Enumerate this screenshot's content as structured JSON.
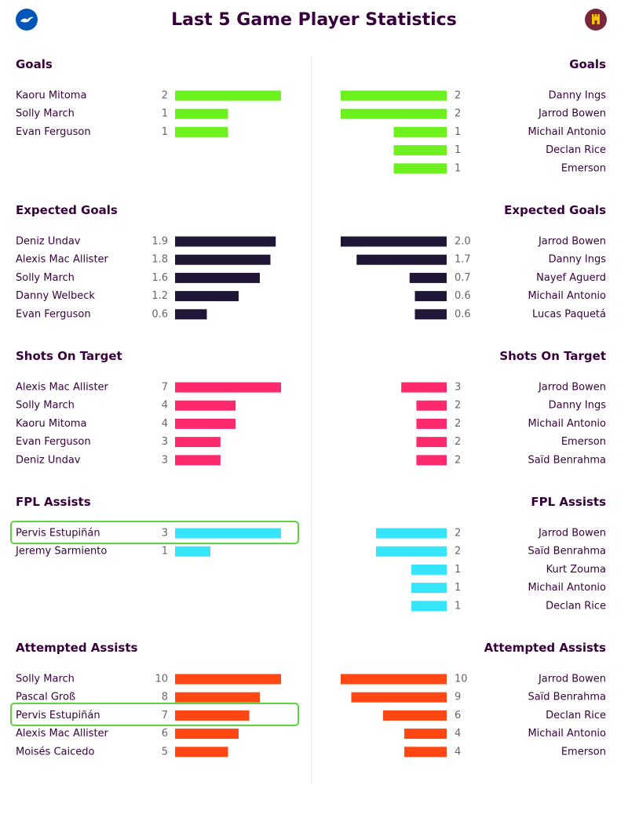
{
  "title": "Last 5 Game Player Statistics",
  "badges": {
    "left": "brighton-crest-icon",
    "right": "west-ham-crest-icon"
  },
  "colors": {
    "Goals": "#6cf01e",
    "Expected Goals": "#221637",
    "Shots On Target": "#ff2a6d",
    "FPL Assists": "#37e5fb",
    "Attempted Assists": "#ff4613",
    "highlight": "#5fd23f",
    "text": "#37003c",
    "value_text": "#666666"
  },
  "chart_data": [
    {
      "type": "bar",
      "section": "Goals",
      "title": "Goals",
      "xlim": [
        0,
        2
      ],
      "left": [
        {
          "player": "Kaoru Mitoma",
          "value": 2,
          "label": "2"
        },
        {
          "player": "Solly March",
          "value": 1,
          "label": "1"
        },
        {
          "player": "Evan Ferguson",
          "value": 1,
          "label": "1"
        }
      ],
      "right": [
        {
          "player": "Danny Ings",
          "value": 2,
          "label": "2"
        },
        {
          "player": "Jarrod Bowen",
          "value": 2,
          "label": "2"
        },
        {
          "player": "Michail Antonio",
          "value": 1,
          "label": "1"
        },
        {
          "player": "Declan Rice",
          "value": 1,
          "label": "1"
        },
        {
          "player": "Emerson",
          "value": 1,
          "label": "1"
        }
      ]
    },
    {
      "type": "bar",
      "section": "Expected Goals",
      "title": "Expected Goals",
      "xlim": [
        0,
        2.0
      ],
      "left": [
        {
          "player": "Deniz Undav",
          "value": 1.9,
          "label": "1.9"
        },
        {
          "player": "Alexis Mac Allister",
          "value": 1.8,
          "label": "1.8"
        },
        {
          "player": "Solly March",
          "value": 1.6,
          "label": "1.6"
        },
        {
          "player": "Danny Welbeck",
          "value": 1.2,
          "label": "1.2"
        },
        {
          "player": "Evan Ferguson",
          "value": 0.6,
          "label": "0.6"
        }
      ],
      "right": [
        {
          "player": "Jarrod Bowen",
          "value": 2.0,
          "label": "2.0"
        },
        {
          "player": "Danny Ings",
          "value": 1.7,
          "label": "1.7"
        },
        {
          "player": "Nayef Aguerd",
          "value": 0.7,
          "label": "0.7"
        },
        {
          "player": "Michail Antonio",
          "value": 0.6,
          "label": "0.6"
        },
        {
          "player": "Lucas Paquetá",
          "value": 0.6,
          "label": "0.6"
        }
      ]
    },
    {
      "type": "bar",
      "section": "Shots On Target",
      "title": "Shots On Target",
      "xlim": [
        0,
        7
      ],
      "left": [
        {
          "player": "Alexis Mac Allister",
          "value": 7,
          "label": "7"
        },
        {
          "player": "Solly March",
          "value": 4,
          "label": "4"
        },
        {
          "player": "Kaoru Mitoma",
          "value": 4,
          "label": "4"
        },
        {
          "player": "Evan Ferguson",
          "value": 3,
          "label": "3"
        },
        {
          "player": "Deniz Undav",
          "value": 3,
          "label": "3"
        }
      ],
      "right": [
        {
          "player": "Jarrod Bowen",
          "value": 3,
          "label": "3"
        },
        {
          "player": "Danny Ings",
          "value": 2,
          "label": "2"
        },
        {
          "player": "Michail Antonio",
          "value": 2,
          "label": "2"
        },
        {
          "player": "Emerson",
          "value": 2,
          "label": "2"
        },
        {
          "player": "Saïd Benrahma",
          "value": 2,
          "label": "2"
        }
      ]
    },
    {
      "type": "bar",
      "section": "FPL Assists",
      "title": "FPL Assists",
      "xlim": [
        0,
        3
      ],
      "left": [
        {
          "player": "Pervis Estupiñán",
          "value": 3,
          "label": "3",
          "highlight": true
        },
        {
          "player": "Jeremy Sarmiento",
          "value": 1,
          "label": "1"
        }
      ],
      "right": [
        {
          "player": "Jarrod Bowen",
          "value": 2,
          "label": "2"
        },
        {
          "player": "Saïd Benrahma",
          "value": 2,
          "label": "2"
        },
        {
          "player": "Kurt Zouma",
          "value": 1,
          "label": "1"
        },
        {
          "player": "Michail Antonio",
          "value": 1,
          "label": "1"
        },
        {
          "player": "Declan Rice",
          "value": 1,
          "label": "1"
        }
      ]
    },
    {
      "type": "bar",
      "section": "Attempted Assists",
      "title": "Attempted Assists",
      "xlim": [
        0,
        10
      ],
      "left": [
        {
          "player": "Solly March",
          "value": 10,
          "label": "10"
        },
        {
          "player": "Pascal Groß",
          "value": 8,
          "label": "8"
        },
        {
          "player": "Pervis Estupiñán",
          "value": 7,
          "label": "7",
          "highlight": true
        },
        {
          "player": "Alexis Mac Allister",
          "value": 6,
          "label": "6"
        },
        {
          "player": "Moisés Caicedo",
          "value": 5,
          "label": "5"
        }
      ],
      "right": [
        {
          "player": "Jarrod Bowen",
          "value": 10,
          "label": "10"
        },
        {
          "player": "Saïd Benrahma",
          "value": 9,
          "label": "9"
        },
        {
          "player": "Declan Rice",
          "value": 6,
          "label": "6"
        },
        {
          "player": "Michail Antonio",
          "value": 4,
          "label": "4"
        },
        {
          "player": "Emerson",
          "value": 4,
          "label": "4"
        }
      ]
    }
  ]
}
